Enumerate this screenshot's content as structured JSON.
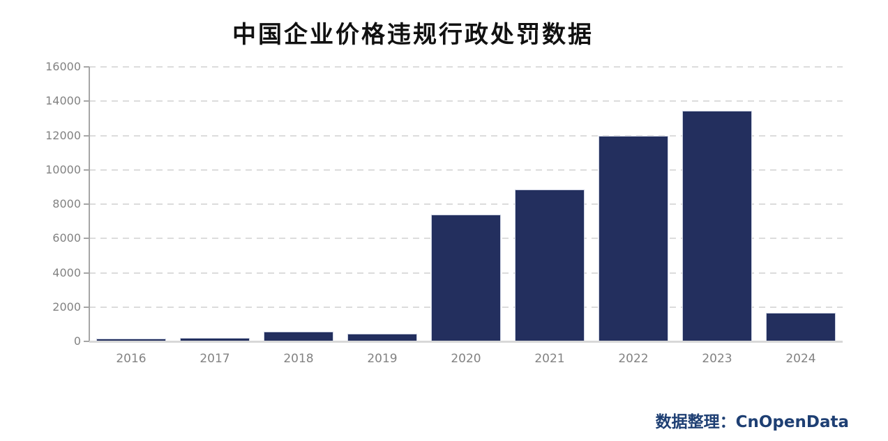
{
  "page": {
    "background": "#ffffff"
  },
  "header": {
    "title": "中国企业价格违规行政处罚数据"
  },
  "footer": {
    "source_label": "数据整理：CnOpenData"
  },
  "chart_data": {
    "type": "bar",
    "title": "中国企业价格违规行政处罚数据",
    "categories": [
      "2016",
      "2017",
      "2018",
      "2019",
      "2020",
      "2021",
      "2022",
      "2023",
      "2024"
    ],
    "values": [
      160,
      210,
      550,
      460,
      7400,
      8860,
      11960,
      13430,
      1660
    ],
    "xlabel": "",
    "ylabel": "",
    "ylim": [
      0,
      16000
    ],
    "yticks": [
      0,
      2000,
      4000,
      6000,
      8000,
      10000,
      12000,
      14000,
      16000
    ],
    "grid": "horizontal-dashed",
    "legend": "none",
    "bar_color": "#232f5e",
    "bar_edge_color": "#ccd2e2",
    "axis_line_color": "#a6a6a6",
    "baseline_color": "#d8d8d8",
    "gridline_color": "#dcdcdc",
    "tick_label_color": "#828282",
    "title_color": "#111111",
    "source_note": "数据整理：CnOpenData",
    "source_color": "#1e3f73"
  }
}
